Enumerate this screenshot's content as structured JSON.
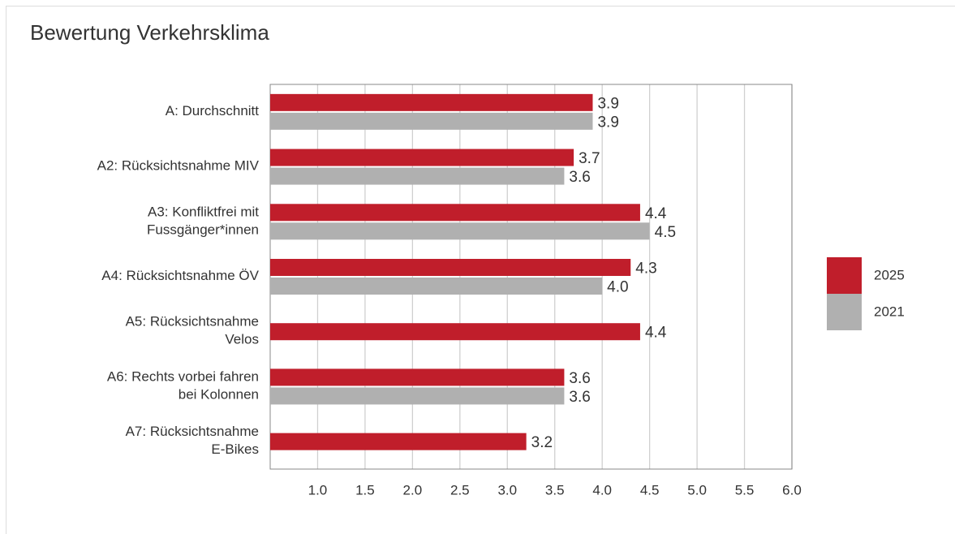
{
  "chart_data": {
    "type": "bar",
    "orientation": "horizontal",
    "title": "Bewertung Verkehrsklima",
    "categories": [
      "A: Durchschnitt",
      "A2: Rücksichtsnahme MIV",
      "A3: Konfliktfrei mit\nFussgänger*innen",
      "A4: Rücksichtsnahme ÖV",
      "A5: Rücksichtsnahme\nVelos",
      "A6: Rechts vorbei fahren\nbei Kolonnen",
      "A7: Rücksichtsnahme\nE-Bikes"
    ],
    "series": [
      {
        "name": "2025",
        "color": "#c01e2b",
        "values": [
          3.9,
          3.7,
          4.4,
          4.3,
          4.4,
          3.6,
          3.2
        ],
        "value_labels": [
          "3.9",
          "3.7",
          "4.4",
          "4.3",
          "4.4",
          "3.6",
          "3.2"
        ]
      },
      {
        "name": "2021",
        "color": "#b0b0b0",
        "values": [
          3.9,
          3.6,
          4.5,
          4.0,
          null,
          3.6,
          null
        ],
        "value_labels": [
          "3.9",
          "3.6",
          "4.5",
          "4.0",
          null,
          "3.6",
          null
        ]
      }
    ],
    "xlim": [
      0.5,
      6.0
    ],
    "xticks": [
      {
        "value": 1,
        "label": "1.0"
      },
      1.5,
      {
        "value": 2,
        "label": "2.0"
      },
      2.5,
      {
        "value": 3,
        "label": "3.0"
      },
      3.5,
      {
        "value": 4,
        "label": "4.0"
      },
      4.5,
      {
        "value": 5,
        "label": "5.0"
      },
      5.5,
      {
        "value": 6,
        "label": "6.0"
      }
    ],
    "grid": true,
    "legend": "right"
  }
}
